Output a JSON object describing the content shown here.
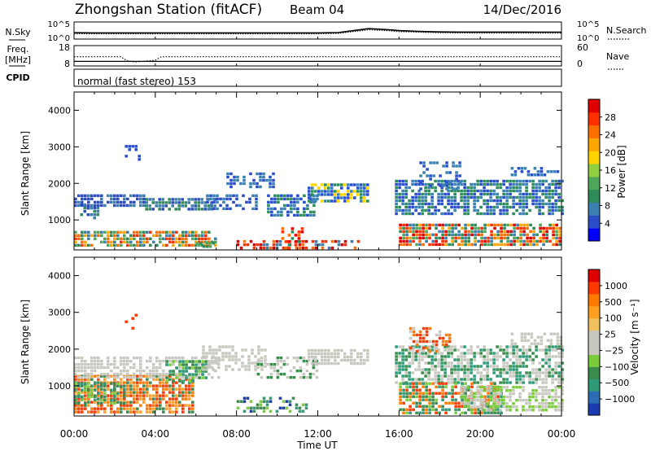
{
  "header": {
    "station_title": "Zhongshan Station (fitACF)",
    "beam": "Beam 04",
    "date": "14/Dec/2016"
  },
  "chart_data": [
    {
      "type": "line",
      "panel": "noise",
      "left_label": "N.Sky",
      "right_label": "N.Search",
      "left_ticks": [
        "10^5",
        "10^0"
      ],
      "right_ticks": [
        "10^5",
        "10^0"
      ],
      "yscale": "log",
      "x_range_hours": [
        0,
        24
      ],
      "series": [
        {
          "line": "solid",
          "x": [
            0,
            1,
            2,
            3,
            4,
            5,
            6,
            7,
            8,
            9,
            10,
            11,
            12,
            13,
            14,
            14.5,
            15,
            15.5,
            16,
            17,
            18,
            19,
            20,
            21,
            22,
            23,
            24
          ],
          "y": [
            50,
            45,
            45,
            45,
            45,
            45,
            45,
            45,
            45,
            45,
            45,
            45,
            45,
            60,
            500,
            1500,
            1000,
            600,
            300,
            150,
            100,
            90,
            90,
            85,
            85,
            80,
            80
          ]
        },
        {
          "line": "dotted",
          "x": [
            0,
            2,
            4,
            6,
            8,
            10,
            12,
            13,
            14,
            14.5,
            15,
            15.5,
            16,
            18,
            20,
            22,
            24
          ],
          "y": [
            20,
            20,
            20,
            20,
            20,
            20,
            20,
            30,
            200,
            600,
            400,
            250,
            120,
            50,
            40,
            40,
            35
          ]
        }
      ]
    },
    {
      "type": "line",
      "panel": "frequency",
      "left_label_lines": [
        "Freq.",
        "[MHz]"
      ],
      "right_label": "Nave",
      "left_ticks": [
        "18",
        "8"
      ],
      "right_ticks": [
        "60",
        "0"
      ],
      "ylim": [
        8,
        18
      ],
      "series": [
        {
          "line": "solid",
          "x": [
            0,
            24
          ],
          "y": [
            10,
            10
          ]
        },
        {
          "line": "dotted",
          "x": [
            0,
            2.3,
            2.6,
            3.0,
            3.5,
            4.0,
            4.3,
            24
          ],
          "y": [
            12.5,
            12.5,
            10.3,
            9.7,
            10.1,
            10.6,
            12.5,
            12.5
          ]
        }
      ]
    },
    {
      "type": "text",
      "panel": "cpid",
      "label": "CPID",
      "program": "normal (fast stereo) 153"
    },
    {
      "type": "heatmap",
      "panel": "power",
      "ylabel": "Slant Range [km]",
      "yticks": [
        1000,
        2000,
        3000,
        4000
      ],
      "ylim": [
        180,
        4500
      ],
      "x_range_hours": [
        0,
        24
      ],
      "colorbar_label": "Power [dB]",
      "colorbar_ticks": [
        "4",
        "8",
        "12",
        "16",
        "20",
        "24",
        "28"
      ],
      "colorbar_colors": [
        "#0000ff",
        "#2b4ec8",
        "#3a80b0",
        "#2e8b5a",
        "#4fa85a",
        "#8fcf40",
        "#ffd200",
        "#ffa500",
        "#ff6f00",
        "#ff3000",
        "#e00000"
      ],
      "colorbar_range": [
        0,
        32
      ]
    },
    {
      "type": "heatmap",
      "panel": "velocity",
      "ylabel": "Slant Range [km]",
      "yticks": [
        1000,
        2000,
        3000,
        4000
      ],
      "ylim": [
        180,
        4500
      ],
      "x_range_hours": [
        0,
        24
      ],
      "colorbar_label": "Velocity [m s⁻¹]",
      "colorbar_ticks": [
        "1000",
        "500",
        "100",
        "25",
        "−25",
        "−100",
        "−500",
        "−1000"
      ],
      "colorbar_colors": [
        "#1b3cb0",
        "#2b6db4",
        "#2f9a78",
        "#3a8c4d",
        "#7acc3a",
        "#c8c8c0",
        "#c8c8c0",
        "#f0c060",
        "#ffa020",
        "#ff7a00",
        "#ff3a00",
        "#e00000"
      ],
      "colorbar_range": [
        -1200,
        1200
      ]
    }
  ],
  "x_axis": {
    "label": "Time UT",
    "ticks": [
      "00:00",
      "04:00",
      "08:00",
      "12:00",
      "16:00",
      "20:00",
      "00:00"
    ]
  }
}
